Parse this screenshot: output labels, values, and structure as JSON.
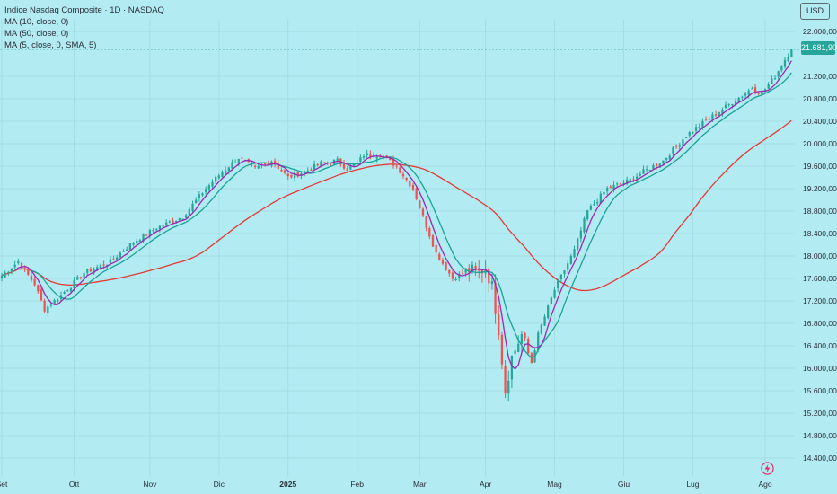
{
  "legend": {
    "title": "Indice Nasdaq Composite · 1D · NASDAQ",
    "ma1": "MA (10, close, 0)",
    "ma2": "MA (50, close, 0)",
    "ma3": "MA (5, close, 0, SMA, 5)"
  },
  "currency_button": "USD",
  "last_price_label": "21.681,90",
  "bolt_icon": "lightning-bolt-icon",
  "colors": {
    "background": "#b2ebf2",
    "up": "#26a69a",
    "down": "#ef5350",
    "ma10": "#1aa397",
    "ma50": "#e53935",
    "ma5": "#9c27b0",
    "price_line": "#26a69a"
  },
  "chart_data": {
    "type": "candlestick",
    "y_axis": {
      "labels": [
        "22.000,00",
        "21.200,00",
        "20.800,00",
        "20.400,00",
        "20.000,00",
        "19.600,00",
        "19.200,00",
        "18.800,00",
        "18.400,00",
        "18.000,00",
        "17.600,00",
        "17.200,00",
        "16.800,00",
        "16.400,00",
        "16.000,00",
        "15.600,00",
        "15.200,00",
        "14.800,00",
        "14.400,00"
      ],
      "values": [
        22000,
        21200,
        20800,
        20400,
        20000,
        19600,
        19200,
        18800,
        18400,
        18000,
        17600,
        17200,
        16800,
        16400,
        16000,
        15600,
        15200,
        14800,
        14400
      ],
      "range": [
        14200,
        22200
      ]
    },
    "x_axis": {
      "labels": [
        "Set",
        "Ott",
        "Nov",
        "Dic",
        "2025",
        "Feb",
        "Mar",
        "Apr",
        "Mag",
        "Giu",
        "Lug",
        "Ago"
      ],
      "bold": [
        false,
        false,
        false,
        false,
        true,
        false,
        false,
        false,
        false,
        false,
        false,
        false
      ],
      "day_index": [
        0,
        22,
        45,
        66,
        87,
        108,
        127,
        147,
        168,
        189,
        210,
        232
      ]
    },
    "last_price": 21681.9,
    "series": [
      {
        "name": "MA (10, close, 0)",
        "role": "ma10"
      },
      {
        "name": "MA (50, close, 0)",
        "role": "ma50"
      },
      {
        "name": "MA (5, close, 0, SMA, 5)",
        "role": "ma5"
      }
    ],
    "close_path": {
      "day_index": [
        0,
        5,
        10,
        13,
        18,
        25,
        33,
        40,
        47,
        55,
        62,
        67,
        72,
        77,
        82,
        87,
        92,
        97,
        102,
        105,
        108,
        110,
        115,
        120,
        125,
        128,
        132,
        137,
        142,
        145,
        147,
        149,
        151,
        153,
        155,
        158,
        161,
        163,
        168,
        171,
        174,
        178,
        184,
        191,
        195,
        201,
        208,
        215,
        221,
        226,
        228,
        231,
        235,
        238,
        240
      ],
      "close": [
        17650,
        17900,
        17500,
        17050,
        17300,
        17700,
        17900,
        18250,
        18500,
        18700,
        19200,
        19500,
        19750,
        19550,
        19700,
        19400,
        19500,
        19650,
        19700,
        19550,
        19650,
        19800,
        19800,
        19600,
        19200,
        18700,
        18050,
        17600,
        17750,
        17700,
        17800,
        17450,
        16700,
        15600,
        16200,
        16600,
        16100,
        16600,
        17400,
        17750,
        18100,
        18800,
        19200,
        19350,
        19500,
        19700,
        20150,
        20450,
        20700,
        20900,
        21000,
        20900,
        21200,
        21500,
        21681.9
      ]
    }
  }
}
